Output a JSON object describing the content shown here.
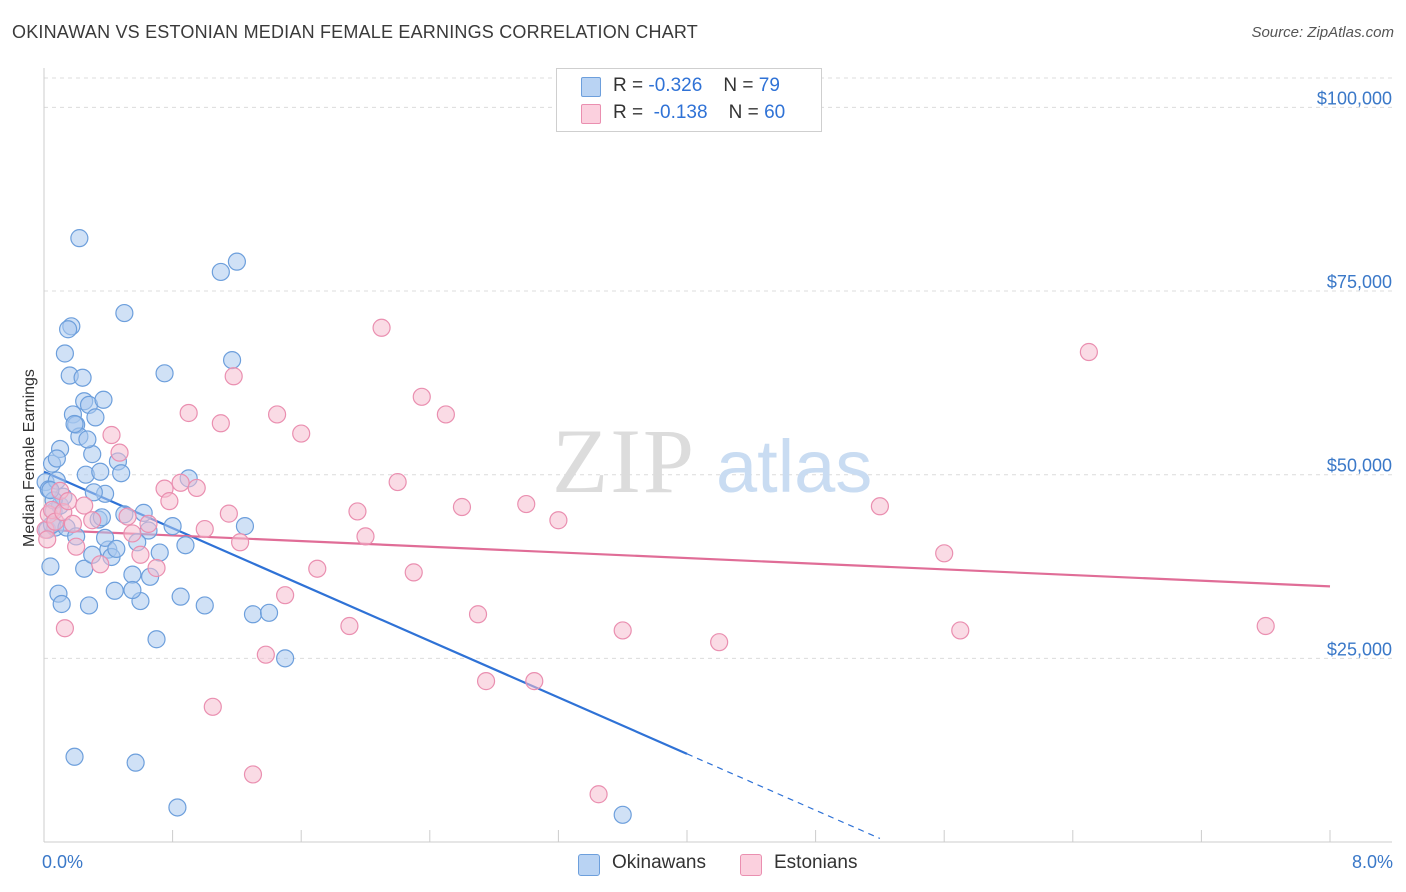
{
  "title": "OKINAWAN VS ESTONIAN MEDIAN FEMALE EARNINGS CORRELATION CHART",
  "source": "Source: ZipAtlas.com",
  "watermark": {
    "zip": "ZIP",
    "atlas": "atlas"
  },
  "stats": {
    "okinawans": {
      "r_label": "R =",
      "r_value": "-0.326",
      "n_label": "N =",
      "n_value": "79"
    },
    "estonians": {
      "r_label": "R =",
      "r_value": "-0.138",
      "n_label": "N =",
      "n_value": "60"
    }
  },
  "legend": {
    "okinawans": "Okinawans",
    "estonians": "Estonians"
  },
  "colors": {
    "okinawans_fill": "#a9c8ef",
    "okinawans_stroke": "#6d9fdc",
    "okinawans_line": "#2f72d6",
    "estonians_fill": "#f6bdd0",
    "estonians_stroke": "#ea8fb0",
    "estonians_line": "#e06d97",
    "axis_text": "#3a78c8",
    "grid": "#dcdcdc"
  },
  "chart_data": {
    "type": "scatter",
    "title": "OKINAWAN VS ESTONIAN MEDIAN FEMALE EARNINGS CORRELATION CHART",
    "xlabel": "",
    "ylabel": "Median Female Earnings",
    "x_unit": "%",
    "xlim": [
      0,
      8
    ],
    "ylim": [
      0,
      104000
    ],
    "x_tick_labels": [
      "0.0%",
      "8.0%"
    ],
    "y_ticks": [
      25000,
      50000,
      75000,
      100000
    ],
    "y_tick_labels": [
      "$25,000",
      "$50,000",
      "$75,000",
      "$100,000"
    ],
    "series": [
      {
        "name": "Okinawans",
        "r": -0.326,
        "n": 79,
        "trend": {
          "x0": 0.0,
          "y0": 50400,
          "x1": 4.0,
          "y1": 12000,
          "dashed_to_x": 5.2
        },
        "points": [
          [
            0.01,
            49000
          ],
          [
            0.02,
            42500
          ],
          [
            0.03,
            48000
          ],
          [
            0.05,
            51500
          ],
          [
            0.06,
            45000
          ],
          [
            0.07,
            42800
          ],
          [
            0.08,
            49200
          ],
          [
            0.04,
            37500
          ],
          [
            0.05,
            43200
          ],
          [
            0.1,
            53500
          ],
          [
            0.1,
            45800
          ],
          [
            0.12,
            47000
          ],
          [
            0.14,
            42800
          ],
          [
            0.16,
            63500
          ],
          [
            0.17,
            70200
          ],
          [
            0.15,
            69800
          ],
          [
            0.13,
            66500
          ],
          [
            0.18,
            58200
          ],
          [
            0.2,
            56800
          ],
          [
            0.22,
            55200
          ],
          [
            0.24,
            63200
          ],
          [
            0.25,
            60000
          ],
          [
            0.26,
            50000
          ],
          [
            0.28,
            59500
          ],
          [
            0.3,
            52800
          ],
          [
            0.32,
            57800
          ],
          [
            0.35,
            50400
          ],
          [
            0.37,
            60200
          ],
          [
            0.38,
            47400
          ],
          [
            0.4,
            39800
          ],
          [
            0.42,
            38800
          ],
          [
            0.44,
            34200
          ],
          [
            0.46,
            51800
          ],
          [
            0.48,
            50200
          ],
          [
            0.5,
            44600
          ],
          [
            0.22,
            82200
          ],
          [
            0.5,
            72000
          ],
          [
            0.55,
            36400
          ],
          [
            0.6,
            32800
          ],
          [
            0.62,
            44800
          ],
          [
            0.65,
            42400
          ],
          [
            0.7,
            27600
          ],
          [
            0.72,
            39400
          ],
          [
            0.75,
            63800
          ],
          [
            0.8,
            43000
          ],
          [
            0.85,
            33400
          ],
          [
            0.88,
            40400
          ],
          [
            0.9,
            49500
          ],
          [
            1.0,
            32200
          ],
          [
            1.1,
            77600
          ],
          [
            1.2,
            79000
          ],
          [
            1.25,
            43000
          ],
          [
            1.3,
            31000
          ],
          [
            1.4,
            31200
          ],
          [
            1.5,
            25000
          ],
          [
            1.17,
            65600
          ],
          [
            0.2,
            41600
          ],
          [
            0.25,
            37200
          ],
          [
            0.28,
            32200
          ],
          [
            0.3,
            39100
          ],
          [
            0.34,
            43900
          ],
          [
            0.38,
            41400
          ],
          [
            0.45,
            39900
          ],
          [
            0.55,
            34300
          ],
          [
            0.09,
            33800
          ],
          [
            0.11,
            32400
          ],
          [
            0.06,
            46500
          ],
          [
            0.04,
            47900
          ],
          [
            0.08,
            52200
          ],
          [
            0.27,
            54800
          ],
          [
            0.19,
            56900
          ],
          [
            0.31,
            47600
          ],
          [
            0.36,
            44200
          ],
          [
            0.58,
            40800
          ],
          [
            0.66,
            36100
          ],
          [
            0.19,
            11600
          ],
          [
            0.57,
            10800
          ],
          [
            0.83,
            4700
          ],
          [
            3.6,
            3700
          ]
        ]
      },
      {
        "name": "Estonians",
        "r": -0.138,
        "n": 60,
        "trend": {
          "x0": 0.0,
          "y0": 42500,
          "x1": 8.0,
          "y1": 34800
        },
        "points": [
          [
            0.01,
            42500
          ],
          [
            0.02,
            41200
          ],
          [
            0.03,
            44600
          ],
          [
            0.05,
            45200
          ],
          [
            0.07,
            43600
          ],
          [
            0.1,
            47800
          ],
          [
            0.12,
            44900
          ],
          [
            0.15,
            46400
          ],
          [
            0.18,
            43300
          ],
          [
            0.2,
            40200
          ],
          [
            0.25,
            45800
          ],
          [
            0.3,
            43800
          ],
          [
            0.35,
            37800
          ],
          [
            0.42,
            55400
          ],
          [
            0.47,
            53000
          ],
          [
            0.52,
            44300
          ],
          [
            0.55,
            42000
          ],
          [
            0.6,
            39100
          ],
          [
            0.65,
            43300
          ],
          [
            0.7,
            37300
          ],
          [
            0.75,
            48100
          ],
          [
            0.78,
            46400
          ],
          [
            0.85,
            48900
          ],
          [
            0.9,
            58400
          ],
          [
            0.95,
            48200
          ],
          [
            1.0,
            42600
          ],
          [
            1.05,
            18400
          ],
          [
            1.1,
            57000
          ],
          [
            1.15,
            44700
          ],
          [
            1.18,
            63400
          ],
          [
            1.22,
            40800
          ],
          [
            1.3,
            9200
          ],
          [
            1.38,
            25500
          ],
          [
            1.45,
            58200
          ],
          [
            1.5,
            33600
          ],
          [
            1.6,
            55600
          ],
          [
            1.7,
            37200
          ],
          [
            1.9,
            29400
          ],
          [
            1.95,
            45000
          ],
          [
            2.0,
            41600
          ],
          [
            2.1,
            70000
          ],
          [
            2.2,
            49000
          ],
          [
            2.3,
            36700
          ],
          [
            2.35,
            60600
          ],
          [
            2.5,
            58200
          ],
          [
            2.6,
            45600
          ],
          [
            2.7,
            31000
          ],
          [
            2.75,
            21900
          ],
          [
            3.0,
            46000
          ],
          [
            3.05,
            21900
          ],
          [
            3.2,
            43800
          ],
          [
            3.45,
            6500
          ],
          [
            3.6,
            28800
          ],
          [
            4.2,
            27200
          ],
          [
            5.2,
            45700
          ],
          [
            5.6,
            39300
          ],
          [
            5.7,
            28800
          ],
          [
            6.5,
            66700
          ],
          [
            7.6,
            29400
          ],
          [
            0.13,
            29100
          ]
        ]
      }
    ]
  }
}
